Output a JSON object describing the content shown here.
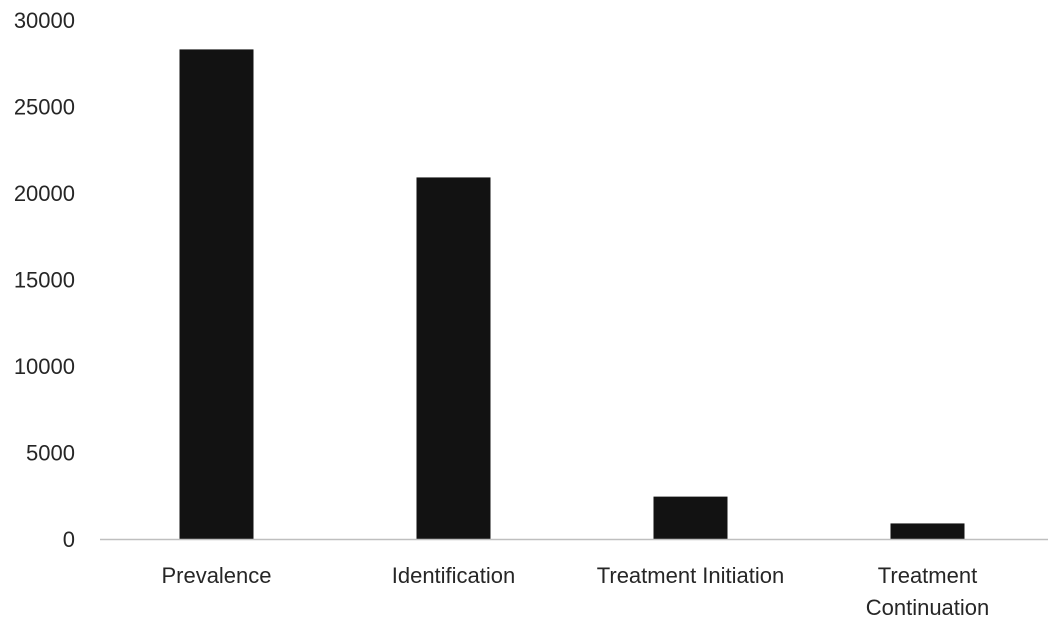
{
  "chart_data": {
    "type": "bar",
    "categories": [
      [
        "Prevalence"
      ],
      [
        "Identification"
      ],
      [
        "Treatment Initiation"
      ],
      [
        "Treatment",
        "Continuation"
      ]
    ],
    "values": [
      28300,
      20900,
      2450,
      900
    ],
    "ylim": [
      0,
      30000
    ],
    "yticks": [
      0,
      5000,
      10000,
      15000,
      20000,
      25000,
      30000
    ],
    "title": "",
    "xlabel": "",
    "ylabel": "",
    "grid": false,
    "legend": "none",
    "bar_color": "#121212",
    "axis_color": "#bfbfbf"
  }
}
